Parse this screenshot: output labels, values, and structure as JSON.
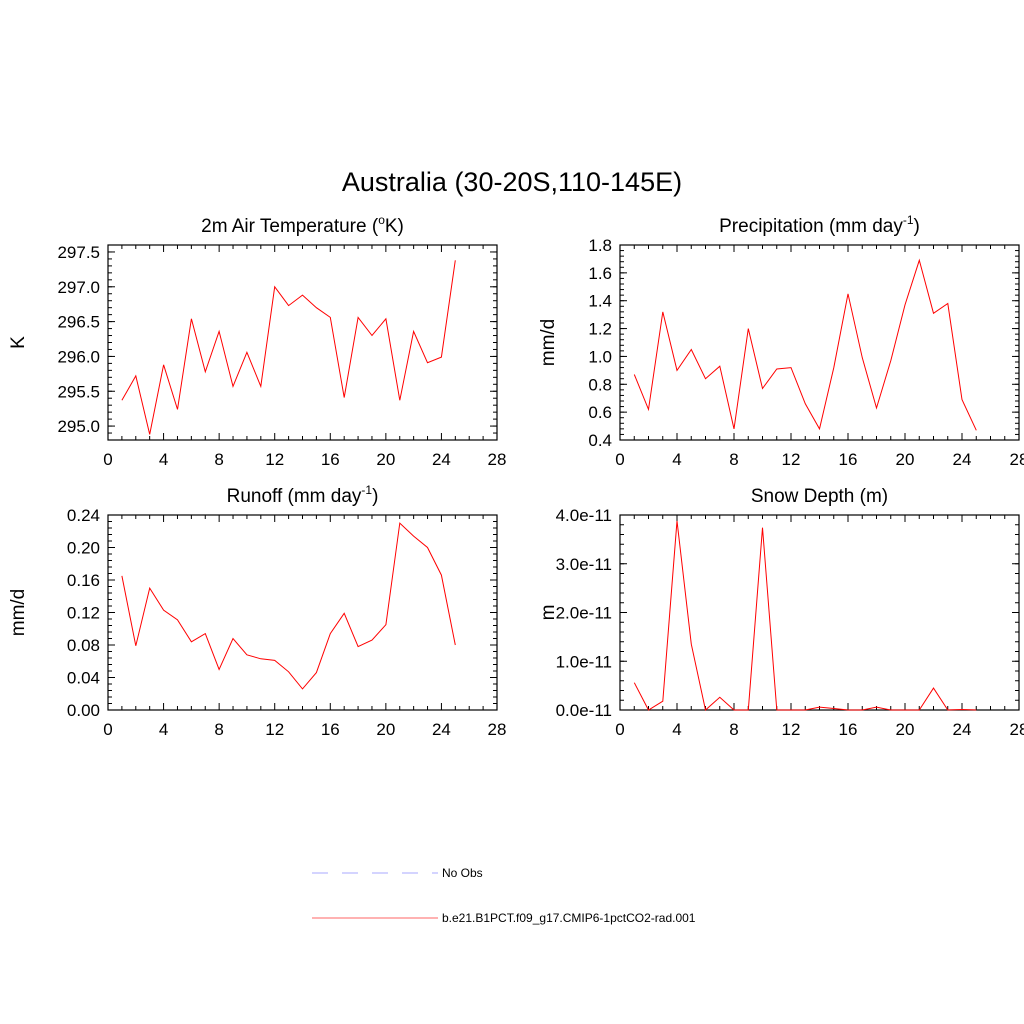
{
  "title": "Australia (30-20S,110-145E)",
  "colors": {
    "model": "#ff0000",
    "obs": "#aaaaff"
  },
  "legend": [
    {
      "label": "No Obs",
      "style": "dashed",
      "color": "#aaaaff"
    },
    {
      "label": "b.e21.B1PCT.f09_g17.CMIP6-1pctCO2-rad.001",
      "style": "solid",
      "color": "#ff6666"
    }
  ],
  "chart_data": [
    {
      "type": "line",
      "title": "2m Air Temperature (",
      "title_sup": "o",
      "title_tail": "K)",
      "ylabel": "K",
      "xlim": [
        0,
        28
      ],
      "ylim": [
        294.8,
        297.6
      ],
      "xticks": [
        "0",
        "4",
        "8",
        "12",
        "16",
        "20",
        "24",
        "28"
      ],
      "yticks": [
        "295.0",
        "295.5",
        "296.0",
        "296.5",
        "297.0",
        "297.5"
      ],
      "ytick_values": [
        295.0,
        295.5,
        296.0,
        296.5,
        297.0,
        297.5
      ],
      "x": [
        1,
        2,
        3,
        4,
        5,
        6,
        7,
        8,
        9,
        10,
        11,
        12,
        13,
        14,
        15,
        16,
        17,
        18,
        19,
        20,
        21,
        22,
        23,
        24,
        25
      ],
      "series": [
        {
          "values": [
            295.37,
            295.72,
            294.88,
            295.88,
            295.24,
            296.54,
            295.78,
            296.36,
            295.57,
            296.06,
            295.57,
            297.0,
            296.73,
            296.88,
            296.7,
            296.56,
            295.41,
            296.56,
            296.3,
            296.54,
            295.37,
            296.36,
            295.91,
            295.99,
            297.38
          ]
        }
      ]
    },
    {
      "type": "line",
      "title": "Precipitation (mm day",
      "title_sup": "-1",
      "title_tail": ")",
      "ylabel": "mm/d",
      "xlim": [
        0,
        28
      ],
      "ylim": [
        0.4,
        1.8
      ],
      "xticks": [
        "0",
        "4",
        "8",
        "12",
        "16",
        "20",
        "24",
        "28"
      ],
      "yticks": [
        "0.4",
        "0.6",
        "0.8",
        "1.0",
        "1.2",
        "1.4",
        "1.6",
        "1.8"
      ],
      "ytick_values": [
        0.4,
        0.6,
        0.8,
        1.0,
        1.2,
        1.4,
        1.6,
        1.8
      ],
      "x": [
        1,
        2,
        3,
        4,
        5,
        6,
        7,
        8,
        9,
        10,
        11,
        12,
        13,
        14,
        15,
        16,
        17,
        18,
        19,
        20,
        21,
        22,
        23,
        24,
        25
      ],
      "series": [
        {
          "values": [
            0.87,
            0.62,
            1.32,
            0.9,
            1.05,
            0.84,
            0.93,
            0.48,
            1.2,
            0.77,
            0.91,
            0.92,
            0.66,
            0.48,
            0.92,
            1.45,
            0.99,
            0.63,
            0.97,
            1.37,
            1.69,
            1.31,
            1.38,
            0.69,
            0.47
          ]
        }
      ]
    },
    {
      "type": "line",
      "title": "Runoff (mm day",
      "title_sup": "-1",
      "title_tail": ")",
      "ylabel": "mm/d",
      "xlim": [
        0,
        28
      ],
      "ylim": [
        0,
        0.24
      ],
      "xticks": [
        "0",
        "4",
        "8",
        "12",
        "16",
        "20",
        "24",
        "28"
      ],
      "yticks": [
        "0.00",
        "0.04",
        "0.08",
        "0.12",
        "0.16",
        "0.20",
        "0.24"
      ],
      "ytick_values": [
        0,
        0.04,
        0.08,
        0.12,
        0.16,
        0.2,
        0.24
      ],
      "x": [
        1,
        2,
        3,
        4,
        5,
        6,
        7,
        8,
        9,
        10,
        11,
        12,
        13,
        14,
        15,
        16,
        17,
        18,
        19,
        20,
        21,
        22,
        23,
        24,
        25
      ],
      "series": [
        {
          "values": [
            0.165,
            0.079,
            0.15,
            0.123,
            0.111,
            0.084,
            0.094,
            0.05,
            0.088,
            0.068,
            0.063,
            0.061,
            0.047,
            0.026,
            0.046,
            0.094,
            0.119,
            0.078,
            0.086,
            0.105,
            0.23,
            0.214,
            0.2,
            0.166,
            0.08
          ]
        }
      ]
    },
    {
      "type": "line",
      "title": "Snow Depth (m)",
      "title_sup": "",
      "title_tail": "",
      "ylabel": "m",
      "xlim": [
        0,
        28
      ],
      "ylim": [
        0,
        4e-11
      ],
      "xticks": [
        "0",
        "4",
        "8",
        "12",
        "16",
        "20",
        "24",
        "28"
      ],
      "yticks": [
        "0.0e-11",
        "1.0e-11",
        "2.0e-11",
        "3.0e-11",
        "4.0e-11"
      ],
      "ytick_values": [
        0,
        1e-11,
        2e-11,
        3e-11,
        4e-11
      ],
      "x": [
        1,
        2,
        3,
        4,
        5,
        6,
        7,
        8,
        9,
        10,
        11,
        12,
        13,
        14,
        15,
        16,
        17,
        18,
        19,
        20,
        21,
        22,
        23,
        24,
        25
      ],
      "series": [
        {
          "values": [
            5.6e-12,
            0,
            1.8e-12,
            3.88e-11,
            1.35e-11,
            0,
            2.6e-12,
            0,
            0,
            3.74e-11,
            0,
            0,
            0,
            6e-13,
            3e-13,
            0,
            0,
            6e-13,
            0,
            0,
            0,
            4.5e-12,
            0,
            1e-13,
            0
          ]
        }
      ]
    }
  ]
}
